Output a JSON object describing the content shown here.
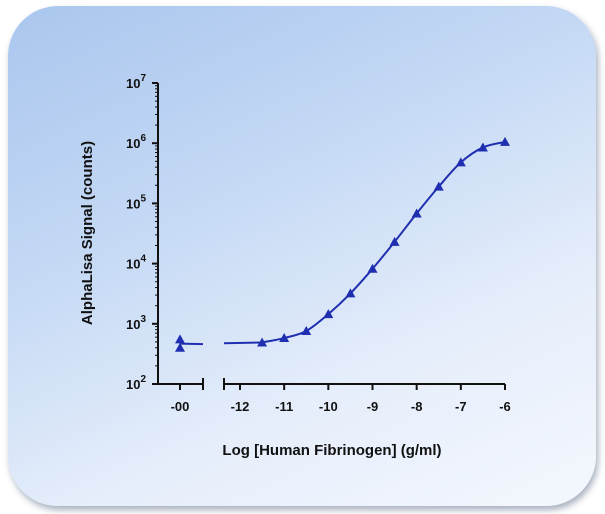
{
  "chart_data": {
    "type": "line",
    "xlabel": "Log [Human Fibrinogen] (g/ml)",
    "ylabel": "AlphaLisa Signal (counts)",
    "y_scale": "log",
    "ylim": [
      100,
      10000000
    ],
    "y_ticks": [
      {
        "value": 100,
        "base": "10",
        "exp": "2"
      },
      {
        "value": 1000,
        "base": "10",
        "exp": "3"
      },
      {
        "value": 10000,
        "base": "10",
        "exp": "4"
      },
      {
        "value": 100000,
        "base": "10",
        "exp": "5"
      },
      {
        "value": 1000000,
        "base": "10",
        "exp": "6"
      },
      {
        "value": 10000000,
        "base": "10",
        "exp": "7"
      }
    ],
    "x_ticks": [
      "-00",
      "-12",
      "-11",
      "-10",
      "-9",
      "-8",
      "-7",
      "-6"
    ],
    "x_break": true,
    "zero_concentration_points": [
      550,
      400
    ],
    "series": [
      {
        "marker": "triangle",
        "color": "#1f2fb0",
        "points": [
          {
            "x": -11.5,
            "y": 490
          },
          {
            "x": -11.0,
            "y": 580
          },
          {
            "x": -10.5,
            "y": 760
          },
          {
            "x": -10.0,
            "y": 1450
          },
          {
            "x": -9.5,
            "y": 3200
          },
          {
            "x": -9.0,
            "y": 8200
          },
          {
            "x": -8.5,
            "y": 23000
          },
          {
            "x": -8.0,
            "y": 68000
          },
          {
            "x": -7.5,
            "y": 190000
          },
          {
            "x": -7.0,
            "y": 480000
          },
          {
            "x": -6.5,
            "y": 850000
          },
          {
            "x": -6.0,
            "y": 1050000
          }
        ]
      }
    ],
    "grid": false
  }
}
